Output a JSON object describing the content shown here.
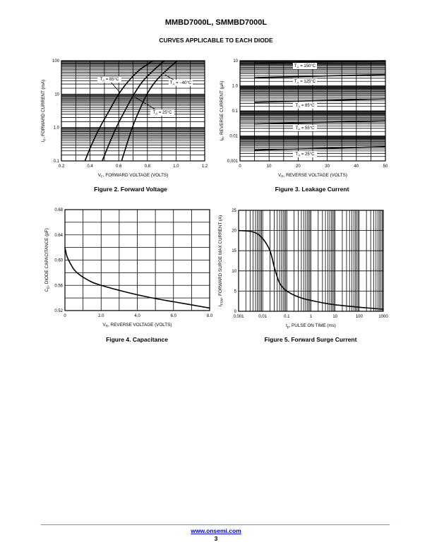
{
  "header": {
    "title": "MMBD7000L, SMMBD7000L",
    "section": "CURVES APPLICABLE TO EACH DIODE"
  },
  "footer": {
    "link": "www.onsemi.com",
    "page": "3"
  },
  "colors": {
    "rule": "#e07a1f",
    "link": "#0000cc"
  },
  "chart_data": [
    {
      "id": "fig2",
      "type": "line",
      "caption": "Figure 2. Forward Voltage",
      "xlabel": [
        "V",
        "F",
        ", FORWARD VOLTAGE (VOLTS)"
      ],
      "ylabel": [
        "I",
        "F",
        ", FORWARD CURRENT (mA)"
      ],
      "xlim": [
        0.2,
        1.2
      ],
      "ylim": [
        0.1,
        100
      ],
      "yscale": "log",
      "xscale": "linear",
      "grid": true,
      "xticks": [
        "0.2",
        "0.4",
        "0.6",
        "0.8",
        "1.0",
        "1.2"
      ],
      "xtick_values": [
        0.2,
        0.4,
        0.6,
        0.8,
        1.0,
        1.2
      ],
      "yticks": [
        "0.1",
        "1.0",
        "10",
        "100"
      ],
      "ytick_values": [
        0.1,
        1,
        10,
        100
      ],
      "series": [
        {
          "label": [
            "T",
            "A",
            " = 85°C"
          ],
          "x": [
            0.364,
            0.41,
            0.468,
            0.53,
            0.6,
            0.67,
            0.75,
            0.84
          ],
          "y": [
            0.1,
            0.3,
            1,
            3,
            10,
            25,
            55,
            100
          ]
        },
        {
          "label": [
            "T",
            "A",
            " = 25°C"
          ],
          "x": [
            0.485,
            0.53,
            0.583,
            0.64,
            0.707,
            0.77,
            0.85,
            0.92
          ],
          "y": [
            0.1,
            0.3,
            1,
            3,
            10,
            25,
            55,
            100
          ]
        },
        {
          "label": [
            "T",
            "A",
            " = −40°C"
          ],
          "x": [
            0.62,
            0.655,
            0.695,
            0.74,
            0.797,
            0.86,
            0.94,
            1.01
          ],
          "y": [
            0.1,
            0.3,
            1,
            3,
            10,
            25,
            55,
            100
          ]
        }
      ]
    },
    {
      "id": "fig3",
      "type": "line",
      "caption": "Figure 3. Leakage Current",
      "xlabel": [
        "V",
        "R",
        ", REVERSE VOLTAGE (VOLTS)"
      ],
      "ylabel": [
        "I",
        "R",
        ", REVERSE CURRENT (μA)"
      ],
      "xlim": [
        0,
        50
      ],
      "ylim": [
        0.001,
        10
      ],
      "yscale": "log",
      "xscale": "linear",
      "grid": true,
      "xticks": [
        "0",
        "10",
        "20",
        "30",
        "40",
        "50"
      ],
      "xtick_values": [
        0,
        10,
        20,
        30,
        40,
        50
      ],
      "yticks": [
        "0.001",
        "0.01",
        "0.1",
        "1.0",
        "10"
      ],
      "ytick_values": [
        0.001,
        0.01,
        0.1,
        1,
        10
      ],
      "series": [
        {
          "label": [
            "T",
            "A",
            " = 150°C"
          ],
          "x": [
            5,
            50
          ],
          "y": [
            8,
            10
          ]
        },
        {
          "label": [
            "T",
            "A",
            " = 125°C"
          ],
          "x": [
            5,
            50
          ],
          "y": [
            2.1,
            2.8
          ]
        },
        {
          "label": [
            "T",
            "A",
            " = 85°C"
          ],
          "x": [
            5,
            50
          ],
          "y": [
            0.22,
            0.3
          ]
        },
        {
          "label": [
            "T",
            "A",
            " = 55°C"
          ],
          "x": [
            5,
            50
          ],
          "y": [
            0.03,
            0.04
          ]
        },
        {
          "label": [
            "T",
            "A",
            " = 25°C"
          ],
          "x": [
            5,
            50
          ],
          "y": [
            0.0027,
            0.0037
          ]
        }
      ]
    },
    {
      "id": "fig4",
      "type": "line",
      "caption": "Figure 4. Capacitance",
      "xlabel": [
        "V",
        "R",
        ", REVERSE VOLTAGE (VOLTS)"
      ],
      "ylabel": [
        "C",
        "D",
        ", DIODE CAPACITANCE (pF)"
      ],
      "xlim": [
        0,
        8
      ],
      "ylim": [
        0.52,
        0.68
      ],
      "yscale": "linear",
      "xscale": "linear",
      "grid": true,
      "xticks": [
        "0",
        "2.0",
        "4.0",
        "6.0",
        "8.0"
      ],
      "xtick_values": [
        0,
        2,
        4,
        6,
        8
      ],
      "yticks": [
        "0.52",
        "0.56",
        "0.60",
        "0.64",
        "0.68"
      ],
      "ytick_values": [
        0.52,
        0.56,
        0.6,
        0.64,
        0.68
      ],
      "series": [
        {
          "x": [
            0,
            0.1,
            0.2,
            0.35,
            0.5,
            0.75,
            1,
            1.5,
            2,
            3,
            4,
            5,
            6,
            7,
            8
          ],
          "y": [
            0.62,
            0.607,
            0.6,
            0.592,
            0.585,
            0.578,
            0.573,
            0.565,
            0.56,
            0.552,
            0.545,
            0.539,
            0.534,
            0.529,
            0.524
          ]
        }
      ]
    },
    {
      "id": "fig5",
      "type": "line",
      "caption": "Figure 5. Forward Surge Current",
      "xlabel": [
        "t",
        "p",
        ", PULSE ON TIME (ms)"
      ],
      "ylabel": [
        "I",
        "FSM",
        ", FORWARD SURGE MAX CURRENT (A)"
      ],
      "xlim": [
        0.001,
        1000
      ],
      "ylim": [
        0,
        25
      ],
      "xscale": "log",
      "yscale": "linear",
      "grid": true,
      "xticks": [
        "0.001",
        "0.01",
        "0.1",
        "1",
        "10",
        "100",
        "1000"
      ],
      "xtick_values": [
        0.001,
        0.01,
        0.1,
        1,
        10,
        100,
        1000
      ],
      "yticks": [
        "0",
        "5",
        "10",
        "15",
        "20",
        "25"
      ],
      "ytick_values": [
        0,
        5,
        10,
        15,
        20,
        25
      ],
      "series": [
        {
          "x": [
            0.001,
            0.003,
            0.006,
            0.01,
            0.015,
            0.02,
            0.025,
            0.03,
            0.04,
            0.05,
            0.07,
            0.1,
            0.2,
            0.5,
            1,
            3,
            10,
            100,
            1000
          ],
          "y": [
            20,
            19.8,
            19.2,
            18,
            16.5,
            15,
            13,
            11,
            8.5,
            7,
            5.8,
            5,
            4,
            3.1,
            2.7,
            2.1,
            1.6,
            1.0,
            0.5
          ]
        }
      ]
    }
  ]
}
